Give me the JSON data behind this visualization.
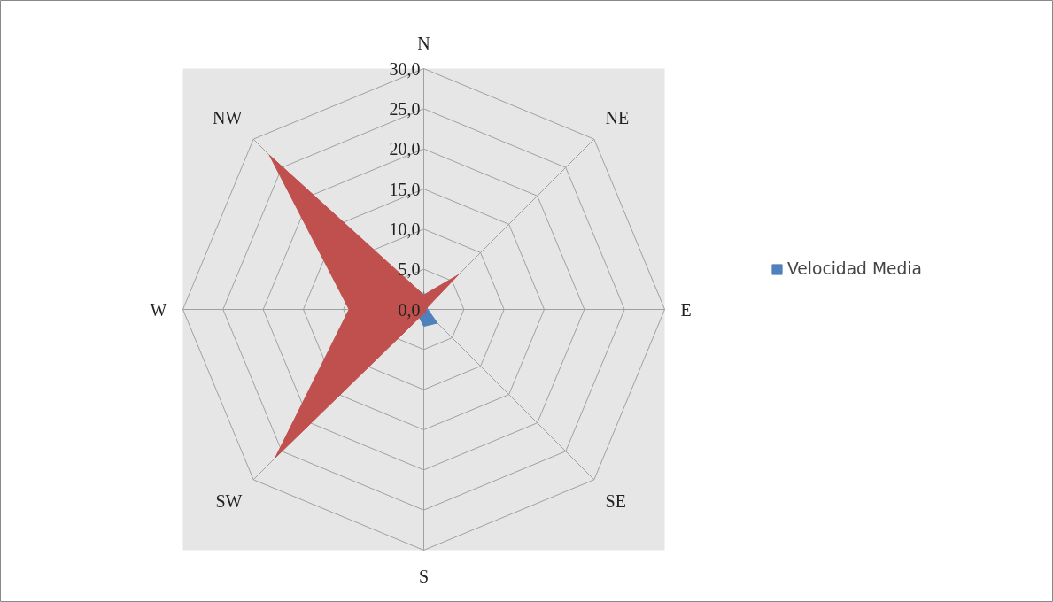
{
  "chart_data": {
    "type": "radar",
    "categories": [
      "N",
      "NE",
      "E",
      "SE",
      "S",
      "SW",
      "W",
      "NW"
    ],
    "series": [
      {
        "name": "Velocidad Media",
        "color": "#4f81bd",
        "values": [
          2.2,
          0.5,
          0.5,
          2.4,
          2.1,
          1.0,
          0.5,
          0.5
        ]
      },
      {
        "color": "#c0504d",
        "values": [
          1.8,
          6.1,
          0.2,
          0.5,
          0.5,
          26.2,
          9.3,
          27.2
        ]
      }
    ],
    "ylim": [
      0,
      30
    ],
    "yticks": [
      {
        "value": 0,
        "label": "0,0"
      },
      {
        "value": 5,
        "label": "5,0"
      },
      {
        "value": 10,
        "label": "10,0"
      },
      {
        "value": 15,
        "label": "15,0"
      },
      {
        "value": 20,
        "label": "20,0"
      },
      {
        "value": 25,
        "label": "25,0"
      },
      {
        "value": 30,
        "label": "30,0"
      }
    ],
    "grid": true,
    "legend": "right"
  }
}
